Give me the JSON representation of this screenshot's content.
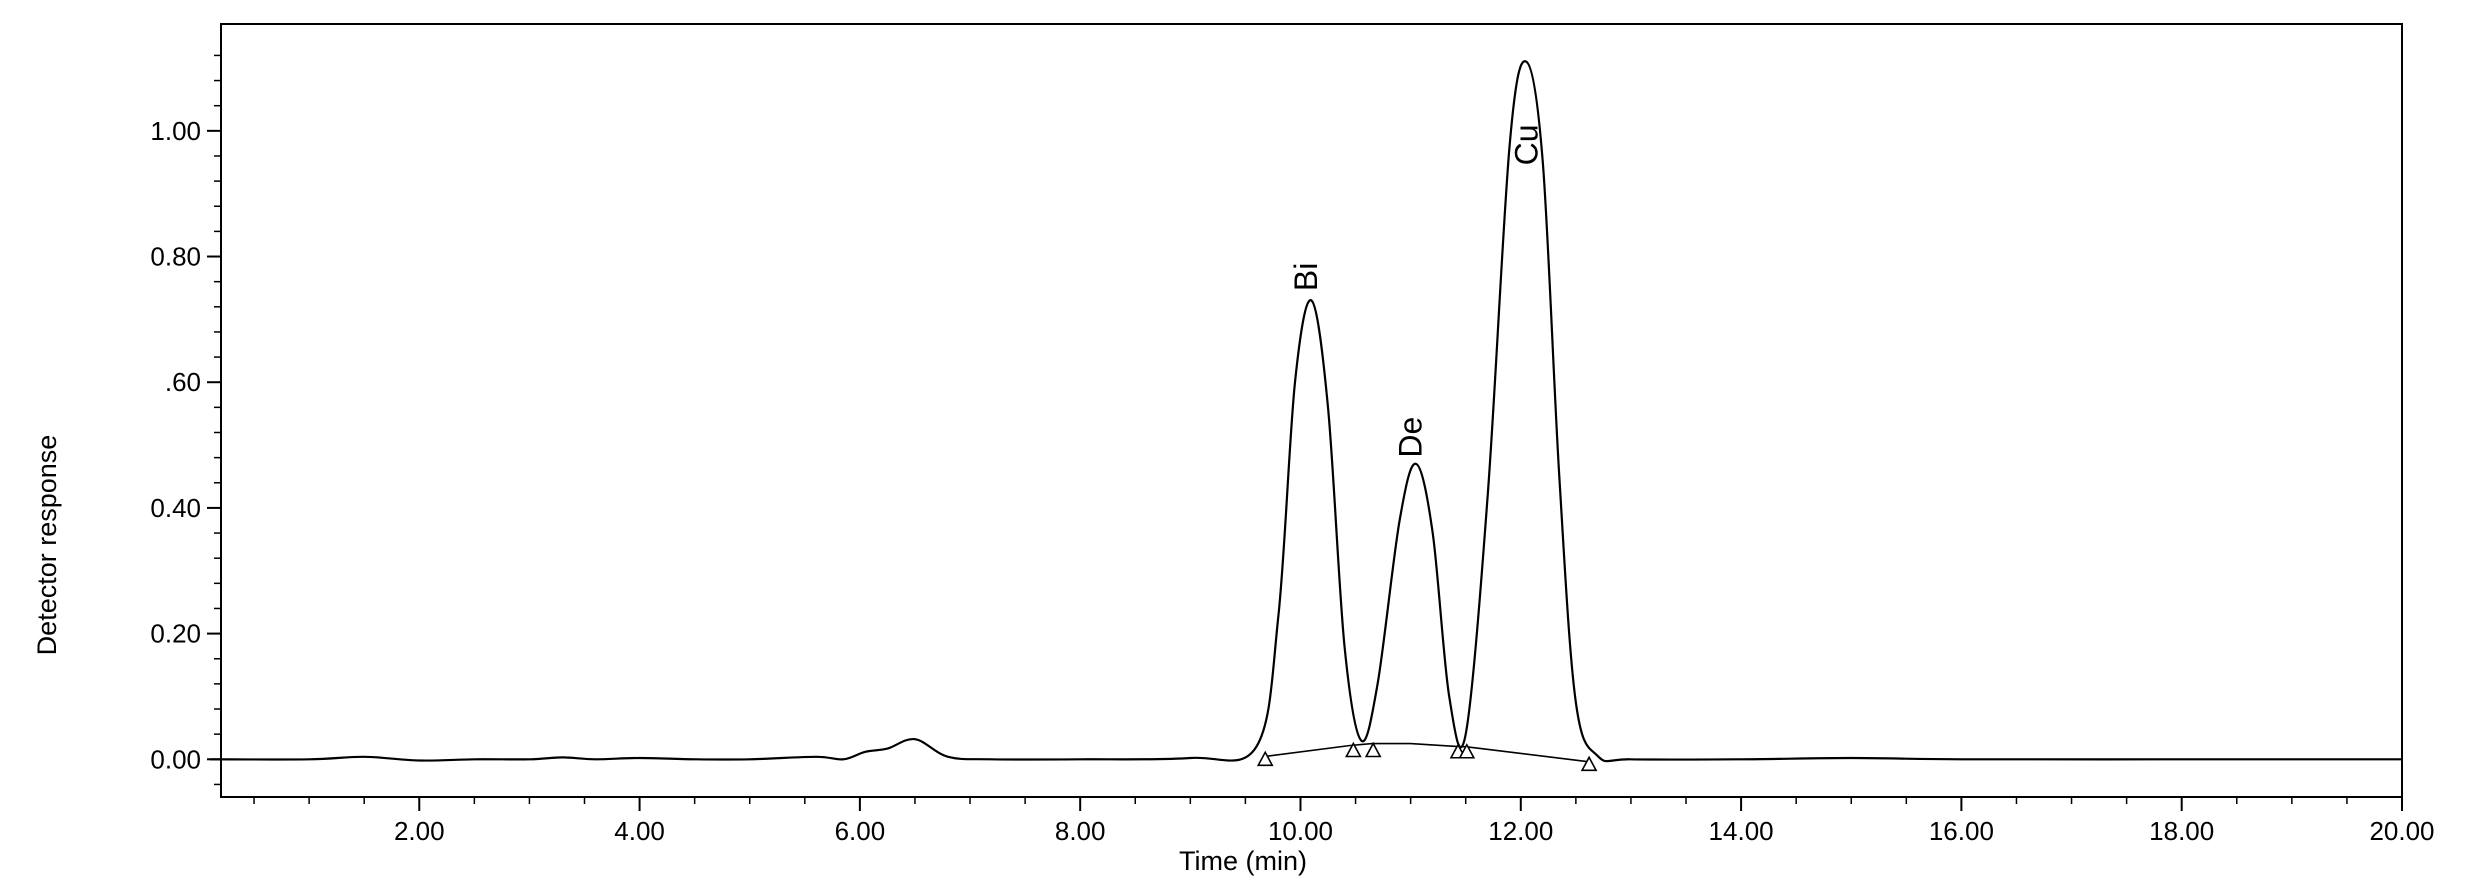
{
  "chart_data": {
    "type": "line",
    "title": "",
    "xlabel": "Time (min)",
    "ylabel": "Detector response",
    "xlim": [
      0.2,
      20.0
    ],
    "ylim": [
      -0.06,
      1.17
    ],
    "grid": false,
    "x_ticks": [
      2.0,
      4.0,
      6.0,
      8.0,
      10.0,
      12.0,
      14.0,
      16.0,
      18.0,
      20.0
    ],
    "x_tick_labels": [
      "2.00",
      "4.00",
      "6.00",
      "8.00",
      "10.00",
      "12.00",
      "14.00",
      "16.00",
      "18.00",
      "20.00"
    ],
    "y_ticks": [
      0.0,
      0.2,
      0.4,
      0.6,
      0.8,
      1.0
    ],
    "y_tick_labels": [
      "0.00",
      "0.20",
      "0.40",
      ".60",
      "0.80",
      "1.00"
    ],
    "series": [
      {
        "x": [
          0.1,
          1.0,
          1.5,
          2.0,
          2.5,
          3.0,
          3.3,
          3.6,
          4.0,
          4.5,
          5.0,
          5.6,
          5.85,
          6.05,
          6.25,
          6.5,
          6.8,
          7.2,
          8.0,
          9.0,
          9.6,
          9.8,
          9.95,
          10.1,
          10.25,
          10.4,
          10.55,
          10.7,
          10.9,
          11.05,
          11.2,
          11.35,
          11.5,
          11.7,
          11.9,
          12.05,
          12.2,
          12.35,
          12.5,
          12.7,
          13.0,
          14.0,
          15.0,
          16.0,
          18.0,
          20.0
        ],
        "y": [
          0.0,
          0.0,
          0.004,
          -0.002,
          0.0,
          0.0,
          0.003,
          0.0,
          0.002,
          0.0,
          0.0,
          0.004,
          0.0,
          0.012,
          0.017,
          0.032,
          0.004,
          0.0,
          0.0,
          0.002,
          0.02,
          0.23,
          0.6,
          0.73,
          0.56,
          0.18,
          0.03,
          0.12,
          0.38,
          0.47,
          0.36,
          0.1,
          0.04,
          0.42,
          0.98,
          1.11,
          0.95,
          0.45,
          0.09,
          0.005,
          0.0,
          0.0,
          0.002,
          0.0,
          0.0,
          0.0
        ]
      }
    ],
    "baseline_segments": [
      {
        "x": [
          9.7,
          10.45,
          10.65,
          11.0,
          11.45,
          11.5,
          12.62
        ],
        "y": [
          0.005,
          0.022,
          0.025,
          0.025,
          0.02,
          0.02,
          -0.004
        ]
      }
    ],
    "integration_markers": {
      "x": [
        9.68,
        10.48,
        10.66,
        11.43,
        11.51,
        12.62
      ],
      "y": [
        0.0,
        0.014,
        0.014,
        0.012,
        0.012,
        -0.008
      ]
    },
    "annotations": [
      {
        "text": "Bi",
        "x": 10.05,
        "y": 0.745
      },
      {
        "text": "De",
        "x": 11.0,
        "y": 0.48
      },
      {
        "text": "Cu",
        "x": 12.05,
        "y": 0.945
      }
    ]
  }
}
